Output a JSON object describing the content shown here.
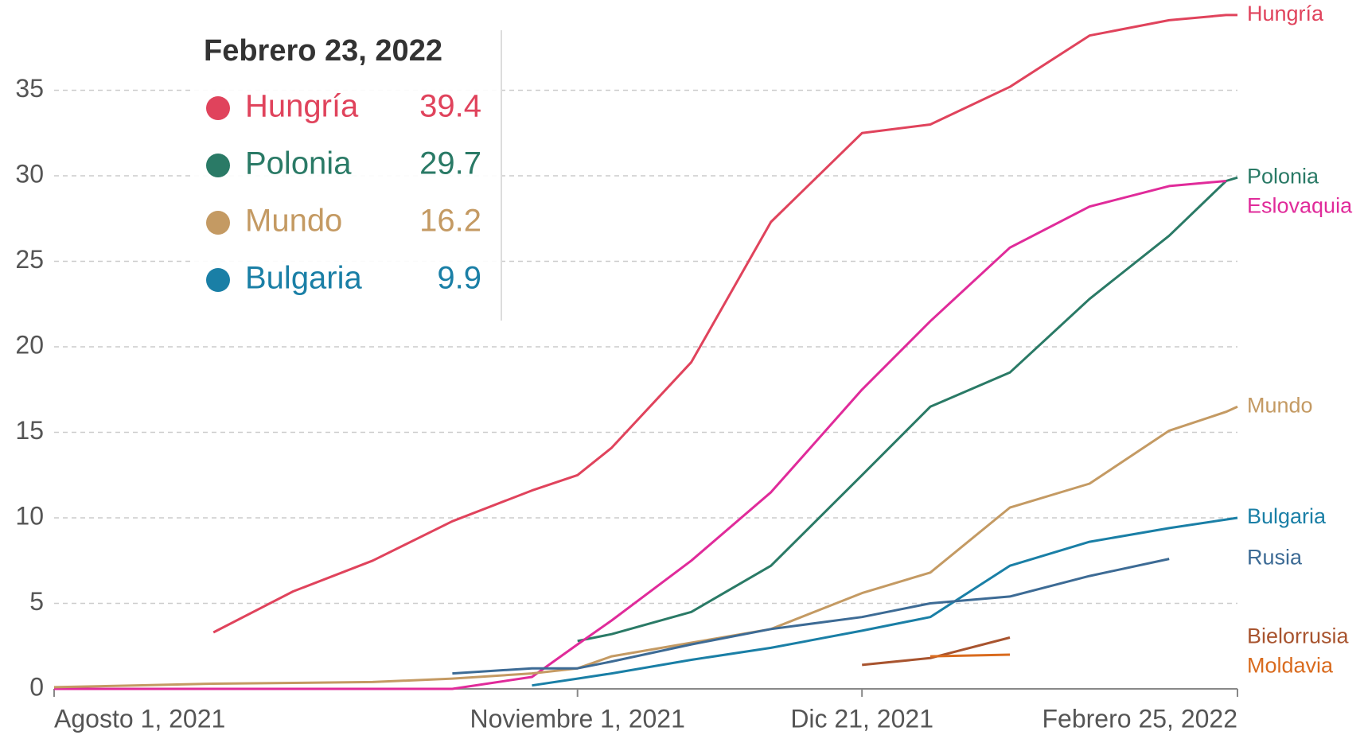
{
  "chart_data": {
    "type": "line",
    "x": [
      "2021-08-01",
      "2021-08-15",
      "2021-08-29",
      "2021-09-12",
      "2021-09-26",
      "2021-10-10",
      "2021-10-24",
      "2021-11-01",
      "2021-11-07",
      "2021-11-21",
      "2021-12-05",
      "2021-12-21",
      "2022-01-02",
      "2022-01-16",
      "2022-01-30",
      "2022-02-13",
      "2022-02-23",
      "2022-02-25"
    ],
    "xlim": [
      "2021-08-01",
      "2022-02-25"
    ],
    "xticks": [
      {
        "value": "2021-08-01",
        "label": "Agosto 1, 2021"
      },
      {
        "value": "2021-11-01",
        "label": "Noviembre 1, 2021"
      },
      {
        "value": "2021-12-21",
        "label": "Dic 21, 2021"
      },
      {
        "value": "2022-02-25",
        "label": "Febrero 25, 2022"
      }
    ],
    "ylim": [
      0,
      40
    ],
    "yticks": [
      0,
      5,
      10,
      15,
      20,
      25,
      30,
      35
    ],
    "grid": true,
    "series": [
      {
        "name": "Hungría",
        "color": "#e0435c",
        "values": [
          null,
          null,
          3.3,
          5.7,
          7.5,
          9.8,
          11.6,
          12.5,
          14.1,
          19.1,
          27.3,
          32.5,
          33,
          35.2,
          38.2,
          39.1,
          39.4,
          39.4
        ]
      },
      {
        "name": "Polonia",
        "color": "#2a7a66",
        "values": [
          null,
          null,
          null,
          null,
          null,
          null,
          null,
          2.8,
          3.2,
          4.5,
          7.2,
          12.5,
          16.5,
          18.5,
          22.8,
          26.5,
          29.7,
          29.9
        ]
      },
      {
        "name": "Eslovaquia",
        "color": "#e02b9a",
        "values": [
          0,
          0,
          0,
          0,
          0,
          0,
          0.7,
          2.6,
          4.0,
          7.5,
          11.5,
          17.5,
          21.5,
          25.8,
          28.2,
          29.4,
          29.7,
          null
        ]
      },
      {
        "name": "Mundo",
        "color": "#c49a63",
        "values": [
          0.1,
          0.2,
          0.3,
          0.35,
          0.4,
          0.6,
          0.9,
          1.2,
          1.9,
          2.7,
          3.5,
          5.6,
          6.8,
          10.6,
          12.0,
          15.1,
          16.2,
          16.5
        ]
      },
      {
        "name": "Bulgaria",
        "color": "#1a7fa6",
        "values": [
          null,
          null,
          null,
          null,
          null,
          null,
          0.2,
          0.6,
          0.9,
          1.7,
          2.4,
          3.4,
          4.2,
          7.2,
          8.6,
          9.4,
          9.9,
          10.0
        ]
      },
      {
        "name": "Rusia",
        "color": "#3d6b95",
        "values": [
          null,
          null,
          null,
          null,
          null,
          0.9,
          1.2,
          1.2,
          1.6,
          2.6,
          3.5,
          4.2,
          5.0,
          5.4,
          6.6,
          7.6,
          null,
          null
        ]
      },
      {
        "name": "Bielorrusia",
        "color": "#a8542f",
        "values": [
          null,
          null,
          null,
          null,
          null,
          null,
          null,
          null,
          null,
          null,
          null,
          1.4,
          1.8,
          3.0,
          null,
          null,
          null,
          null
        ]
      },
      {
        "name": "Moldavia",
        "color": "#d96b1e",
        "values": [
          null,
          null,
          null,
          null,
          null,
          null,
          null,
          null,
          null,
          null,
          null,
          null,
          1.9,
          2.0,
          null,
          null,
          null,
          null
        ]
      }
    ]
  },
  "tooltip": {
    "title": "Febrero 23, 2022",
    "rows": [
      {
        "name": "Hungría",
        "value": 39.4,
        "color": "#e0435c"
      },
      {
        "name": "Polonia",
        "value": 29.7,
        "color": "#2a7a66"
      },
      {
        "name": "Mundo",
        "value": 16.2,
        "color": "#c49a63"
      },
      {
        "name": "Bulgaria",
        "value": 9.9,
        "color": "#1a7fa6"
      }
    ]
  }
}
